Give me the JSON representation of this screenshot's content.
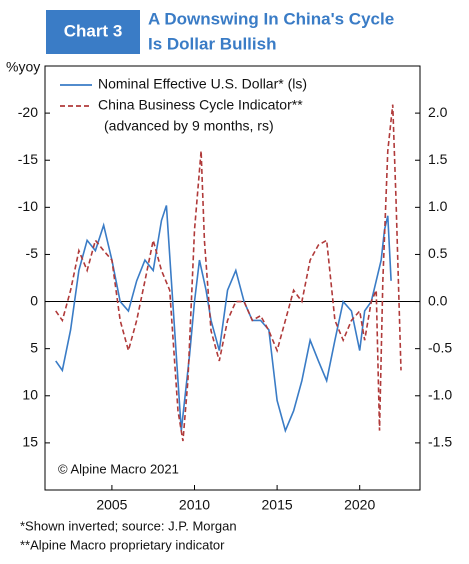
{
  "chart_data": {
    "type": "line",
    "badge": "Chart 3",
    "title_lines": [
      "A Downswing In China's Cycle",
      "Is Dollar Bullish"
    ],
    "y_label": "%yoy",
    "annotation": "© Alpine Macro 2021",
    "footnotes": [
      "*Shown inverted; source: J.P. Morgan",
      "**Alpine Macro proprietary indicator"
    ],
    "xlim": [
      2000.95,
      2023.65
    ],
    "xticks": [
      2005,
      2010,
      2015,
      2020
    ],
    "ylim": [
      20,
      -25
    ],
    "yticks": [
      -20,
      -15,
      -10,
      -5,
      0,
      5,
      10,
      15
    ],
    "y2lim": [
      -2.0,
      2.5
    ],
    "y2ticks": [
      {
        "value": 2.0,
        "label": "2.0"
      },
      {
        "value": 1.5,
        "label": "1.5"
      },
      {
        "value": 1.0,
        "label": "1.0"
      },
      {
        "value": 0.5,
        "label": "0.5"
      },
      {
        "value": 0.0,
        "label": "0.0"
      },
      {
        "value": -0.5,
        "label": "-0.5"
      },
      {
        "value": -1.0,
        "label": "-1.0"
      },
      {
        "value": -1.5,
        "label": "-1.5"
      }
    ],
    "series": [
      {
        "name": "Nominal Effective U.S. Dollar* (ls)",
        "color": "#3a7cc6",
        "dash": false,
        "axis": "y",
        "x": [
          2001.6,
          2002,
          2002.5,
          2003,
          2003.5,
          2004,
          2004.5,
          2005,
          2005.5,
          2006,
          2006.5,
          2007,
          2007.5,
          2008,
          2008.3,
          2008.6,
          2009,
          2009.2,
          2009.4,
          2009.7,
          2010,
          2010.3,
          2010.7,
          2011,
          2011.5,
          2012,
          2012.5,
          2013,
          2013.5,
          2014,
          2014.5,
          2015,
          2015.5,
          2016,
          2016.5,
          2017,
          2017.5,
          2018,
          2018.5,
          2019,
          2019.5,
          2020,
          2020.3,
          2020.7,
          2021,
          2021.3,
          2021.5,
          2021.7,
          2021.9
        ],
        "values": [
          6.3,
          7.3,
          3,
          -3.3,
          -6.5,
          -5.4,
          -8.1,
          -4.4,
          0,
          1,
          -2.2,
          -4.4,
          -3.3,
          -8.6,
          -10.2,
          -2.2,
          8.4,
          13.7,
          10.5,
          5.7,
          0,
          -4.4,
          -1.2,
          2,
          5.2,
          -1.2,
          -3.3,
          0,
          2,
          2,
          3,
          10.5,
          13.7,
          11.6,
          8.4,
          4.1,
          6.3,
          8.4,
          4.1,
          0,
          1,
          5.2,
          1,
          0,
          -2.2,
          -4.4,
          -7.6,
          -9.1,
          -2.2
        ]
      },
      {
        "name": "China Business Cycle Indicator**",
        "name_note": "(advanced by 9 months, rs)",
        "color": "#b03a3a",
        "dash": true,
        "axis": "y2",
        "x": [
          2001.6,
          2002,
          2002.5,
          2003,
          2003.5,
          2004,
          2004.5,
          2005,
          2005.5,
          2006,
          2006.5,
          2007,
          2007.5,
          2008,
          2008.5,
          2009,
          2009.3,
          2009.6,
          2010,
          2010.4,
          2010.6,
          2011,
          2011.5,
          2012,
          2012.5,
          2013,
          2013.5,
          2014,
          2014.5,
          2015,
          2015.5,
          2016,
          2016.5,
          2017,
          2017.5,
          2018,
          2018.5,
          2019,
          2019.5,
          2020,
          2020.3,
          2020.7,
          2021,
          2021.2,
          2021.4,
          2021.7,
          2022,
          2022.2,
          2022.5
        ],
        "values": [
          -0.1,
          -0.2,
          0.12,
          0.54,
          0.33,
          0.65,
          0.54,
          0.44,
          -0.2,
          -0.52,
          -0.2,
          0.22,
          0.65,
          0.33,
          0.12,
          -1.16,
          -1.48,
          -0.84,
          0.76,
          1.6,
          0.65,
          -0.31,
          -0.63,
          -0.2,
          0,
          0,
          -0.2,
          -0.15,
          -0.31,
          -0.52,
          -0.2,
          0.12,
          0,
          0.44,
          0.6,
          0.65,
          -0.2,
          -0.41,
          -0.2,
          -0.1,
          -0.41,
          0,
          0.12,
          -1.37,
          0.22,
          1.6,
          2.09,
          1.07,
          -0.73
        ]
      }
    ]
  }
}
